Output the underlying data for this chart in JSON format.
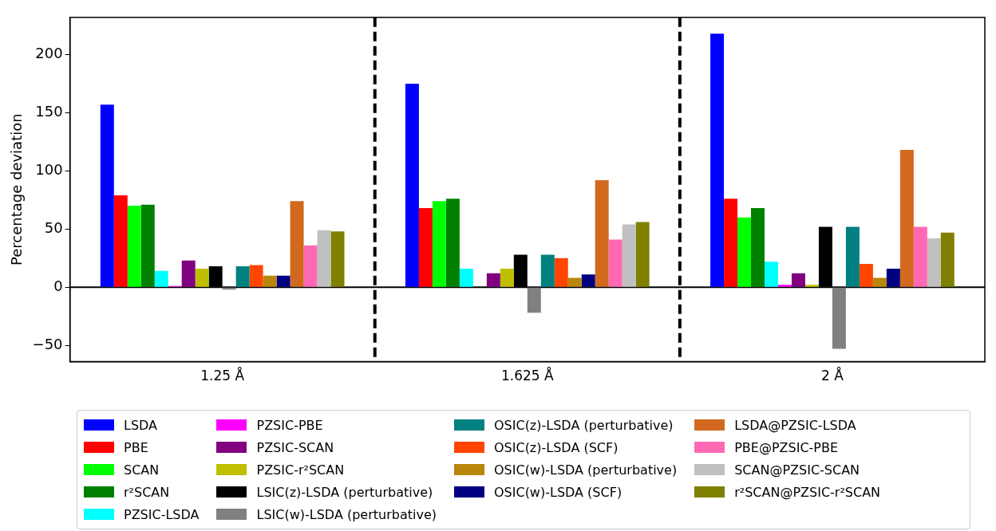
{
  "chart_data": {
    "type": "bar",
    "ylabel": "Percentage deviation",
    "categories": [
      "1.25 Å",
      "1.625 Å",
      "2 Å"
    ],
    "ylim": [
      -64,
      232
    ],
    "yticks": [
      -50,
      0,
      50,
      100,
      150,
      200
    ],
    "grid": false,
    "legend": "bottom",
    "ref_lines": [
      {
        "axis": "y",
        "value": 0,
        "color": "#000000",
        "line_style": "solid"
      }
    ],
    "series": [
      {
        "name": "LSDA",
        "color": "#0000ff",
        "values": [
          157,
          175,
          218
        ]
      },
      {
        "name": "PBE",
        "color": "#ff0000",
        "values": [
          79,
          68,
          76
        ]
      },
      {
        "name": "SCAN",
        "color": "#00ff00",
        "values": [
          70,
          74,
          60
        ]
      },
      {
        "name": "r²SCAN",
        "color": "#008000",
        "values": [
          71,
          76,
          68
        ]
      },
      {
        "name": "PZSIC-LSDA",
        "color": "#00ffff",
        "values": [
          14,
          16,
          22
        ]
      },
      {
        "name": "PZSIC-PBE",
        "color": "#ff00ff",
        "values": [
          1,
          0,
          2
        ]
      },
      {
        "name": "PZSIC-SCAN",
        "color": "#800080",
        "values": [
          23,
          12,
          12
        ]
      },
      {
        "name": "PZSIC-r²SCAN",
        "color": "#bfbf00",
        "values": [
          16,
          16,
          2
        ]
      },
      {
        "name": "LSIC(z)-LSDA (perturbative)",
        "color": "#000000",
        "values": [
          18,
          28,
          52
        ]
      },
      {
        "name": "LSIC(w)-LSDA (perturbative)",
        "color": "#808080",
        "values": [
          -2,
          -22,
          -53
        ]
      },
      {
        "name": "OSIC(z)-LSDA (perturbative)",
        "color": "#008080",
        "values": [
          18,
          28,
          52
        ]
      },
      {
        "name": "OSIC(z)-LSDA (SCF)",
        "color": "#ff4500",
        "values": [
          19,
          25,
          20
        ]
      },
      {
        "name": "OSIC(w)-LSDA (perturbative)",
        "color": "#b8860b",
        "values": [
          10,
          8,
          8
        ]
      },
      {
        "name": "OSIC(w)-LSDA (SCF)",
        "color": "#000080",
        "values": [
          10,
          11,
          16
        ]
      },
      {
        "name": "LSDA@PZSIC-LSDA",
        "color": "#d2691e",
        "values": [
          74,
          92,
          118
        ]
      },
      {
        "name": "PBE@PZSIC-PBE",
        "color": "#ff69b4",
        "values": [
          36,
          41,
          52
        ]
      },
      {
        "name": "SCAN@PZSIC-SCAN",
        "color": "#c0c0c0",
        "values": [
          49,
          54,
          42
        ]
      },
      {
        "name": "r²SCAN@PZSIC-r²SCAN",
        "color": "#808000",
        "values": [
          48,
          56,
          47
        ]
      }
    ]
  }
}
